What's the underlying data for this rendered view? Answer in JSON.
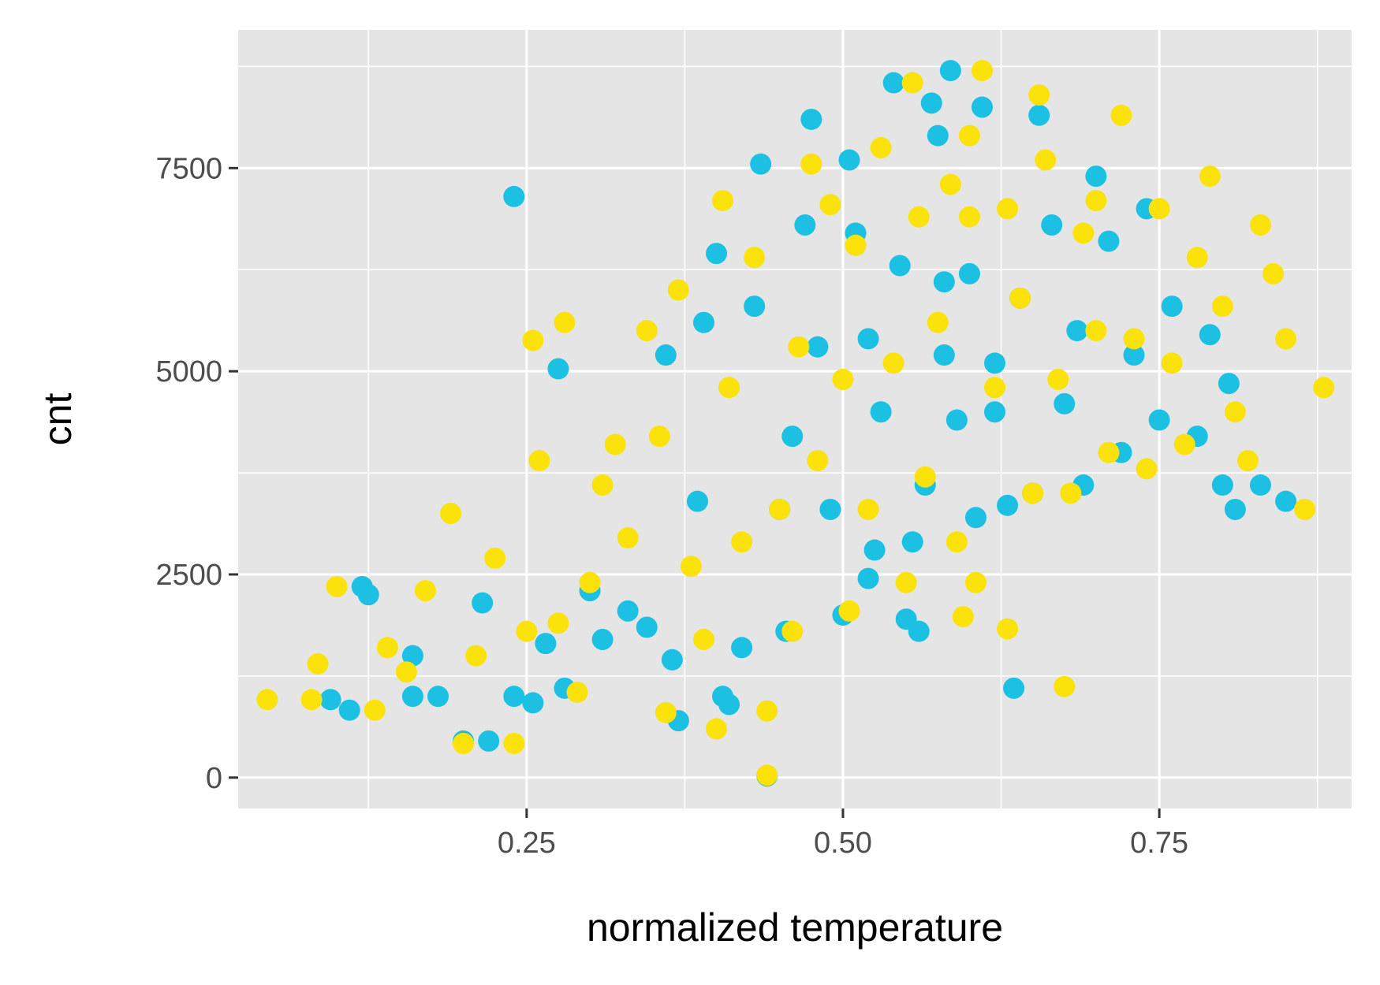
{
  "chart_data": {
    "type": "scatter",
    "xlabel": "normalized temperature",
    "ylabel": "cnt",
    "xlim": [
      0.022,
      0.902
    ],
    "ylim": [
      -380,
      9200
    ],
    "x_ticks": [
      0.25,
      0.5,
      0.75
    ],
    "x_tick_labels": [
      "0.25",
      "0.50",
      "0.75"
    ],
    "y_ticks": [
      0,
      2500,
      5000,
      7500
    ],
    "y_tick_labels": [
      "0",
      "2500",
      "5000",
      "7500"
    ],
    "grid": true,
    "legend": "none",
    "colors": {
      "panel": "#E5E5E5",
      "grid": "#FFFFFF",
      "series_1": "#1BC0E3",
      "series_2": "#FBE20A",
      "tick_text": "#4D4D4D"
    },
    "series": [
      {
        "color": "#1BC0E3",
        "points": [
          [
            0.095,
            960
          ],
          [
            0.11,
            830
          ],
          [
            0.12,
            2350
          ],
          [
            0.125,
            2250
          ],
          [
            0.16,
            1500
          ],
          [
            0.16,
            1000
          ],
          [
            0.18,
            1000
          ],
          [
            0.2,
            450
          ],
          [
            0.215,
            2150
          ],
          [
            0.22,
            450
          ],
          [
            0.24,
            7150
          ],
          [
            0.24,
            1000
          ],
          [
            0.255,
            920
          ],
          [
            0.265,
            1650
          ],
          [
            0.275,
            5030
          ],
          [
            0.28,
            1100
          ],
          [
            0.3,
            2300
          ],
          [
            0.31,
            1700
          ],
          [
            0.33,
            2050
          ],
          [
            0.345,
            1850
          ],
          [
            0.36,
            5200
          ],
          [
            0.365,
            1450
          ],
          [
            0.37,
            700
          ],
          [
            0.385,
            3400
          ],
          [
            0.39,
            5600
          ],
          [
            0.4,
            6450
          ],
          [
            0.405,
            1000
          ],
          [
            0.41,
            900
          ],
          [
            0.42,
            1600
          ],
          [
            0.43,
            5800
          ],
          [
            0.435,
            7550
          ],
          [
            0.44,
            20
          ],
          [
            0.45,
            3300
          ],
          [
            0.455,
            1800
          ],
          [
            0.46,
            4200
          ],
          [
            0.47,
            6800
          ],
          [
            0.475,
            8100
          ],
          [
            0.48,
            5300
          ],
          [
            0.49,
            3300
          ],
          [
            0.5,
            2000
          ],
          [
            0.505,
            7600
          ],
          [
            0.51,
            6700
          ],
          [
            0.52,
            2450
          ],
          [
            0.525,
            2800
          ],
          [
            0.53,
            4500
          ],
          [
            0.54,
            8550
          ],
          [
            0.545,
            6300
          ],
          [
            0.55,
            1950
          ],
          [
            0.555,
            2900
          ],
          [
            0.56,
            1800
          ],
          [
            0.565,
            3600
          ],
          [
            0.57,
            8300
          ],
          [
            0.575,
            7900
          ],
          [
            0.58,
            5200
          ],
          [
            0.585,
            8700
          ],
          [
            0.59,
            4400
          ],
          [
            0.6,
            6200
          ],
          [
            0.605,
            3200
          ],
          [
            0.61,
            8250
          ],
          [
            0.62,
            5100
          ],
          [
            0.63,
            3350
          ],
          [
            0.635,
            1100
          ],
          [
            0.64,
            5900
          ],
          [
            0.65,
            3500
          ],
          [
            0.655,
            8150
          ],
          [
            0.665,
            6800
          ],
          [
            0.675,
            4600
          ],
          [
            0.685,
            5500
          ],
          [
            0.69,
            3600
          ],
          [
            0.7,
            7400
          ],
          [
            0.71,
            6600
          ],
          [
            0.72,
            4000
          ],
          [
            0.73,
            5200
          ],
          [
            0.74,
            7000
          ],
          [
            0.75,
            4400
          ],
          [
            0.76,
            5800
          ],
          [
            0.78,
            4200
          ],
          [
            0.79,
            5450
          ],
          [
            0.8,
            3600
          ],
          [
            0.805,
            4850
          ],
          [
            0.81,
            3300
          ],
          [
            0.83,
            3600
          ],
          [
            0.85,
            3400
          ],
          [
            0.58,
            6100
          ],
          [
            0.62,
            4500
          ],
          [
            0.52,
            5400
          ]
        ]
      },
      {
        "color": "#FBE20A",
        "points": [
          [
            0.045,
            960
          ],
          [
            0.08,
            960
          ],
          [
            0.085,
            1400
          ],
          [
            0.1,
            2350
          ],
          [
            0.13,
            830
          ],
          [
            0.14,
            1600
          ],
          [
            0.155,
            1300
          ],
          [
            0.17,
            2300
          ],
          [
            0.19,
            3250
          ],
          [
            0.2,
            420
          ],
          [
            0.21,
            1500
          ],
          [
            0.225,
            2700
          ],
          [
            0.24,
            420
          ],
          [
            0.25,
            1800
          ],
          [
            0.255,
            5380
          ],
          [
            0.26,
            3900
          ],
          [
            0.275,
            1900
          ],
          [
            0.28,
            5600
          ],
          [
            0.29,
            1050
          ],
          [
            0.3,
            2400
          ],
          [
            0.31,
            3600
          ],
          [
            0.32,
            4100
          ],
          [
            0.33,
            2950
          ],
          [
            0.345,
            5500
          ],
          [
            0.355,
            4200
          ],
          [
            0.36,
            800
          ],
          [
            0.37,
            6000
          ],
          [
            0.38,
            2600
          ],
          [
            0.39,
            1700
          ],
          [
            0.4,
            600
          ],
          [
            0.405,
            7100
          ],
          [
            0.41,
            4800
          ],
          [
            0.42,
            2900
          ],
          [
            0.43,
            6400
          ],
          [
            0.44,
            30
          ],
          [
            0.44,
            820
          ],
          [
            0.45,
            3300
          ],
          [
            0.46,
            1800
          ],
          [
            0.465,
            5300
          ],
          [
            0.475,
            7550
          ],
          [
            0.48,
            3900
          ],
          [
            0.49,
            7050
          ],
          [
            0.5,
            4900
          ],
          [
            0.505,
            2050
          ],
          [
            0.51,
            6550
          ],
          [
            0.52,
            3300
          ],
          [
            0.53,
            7750
          ],
          [
            0.54,
            5100
          ],
          [
            0.55,
            2400
          ],
          [
            0.555,
            8550
          ],
          [
            0.565,
            3700
          ],
          [
            0.575,
            5600
          ],
          [
            0.585,
            7300
          ],
          [
            0.59,
            2900
          ],
          [
            0.595,
            1980
          ],
          [
            0.6,
            6900
          ],
          [
            0.605,
            2400
          ],
          [
            0.61,
            8700
          ],
          [
            0.62,
            4800
          ],
          [
            0.63,
            1830
          ],
          [
            0.64,
            5900
          ],
          [
            0.65,
            3500
          ],
          [
            0.655,
            8400
          ],
          [
            0.66,
            7600
          ],
          [
            0.67,
            4900
          ],
          [
            0.675,
            1120
          ],
          [
            0.68,
            3500
          ],
          [
            0.69,
            6700
          ],
          [
            0.7,
            5500
          ],
          [
            0.71,
            4000
          ],
          [
            0.72,
            8150
          ],
          [
            0.73,
            5400
          ],
          [
            0.74,
            3800
          ],
          [
            0.75,
            7000
          ],
          [
            0.76,
            5100
          ],
          [
            0.77,
            4100
          ],
          [
            0.78,
            6400
          ],
          [
            0.79,
            7400
          ],
          [
            0.8,
            5800
          ],
          [
            0.81,
            4500
          ],
          [
            0.82,
            3900
          ],
          [
            0.83,
            6800
          ],
          [
            0.84,
            6200
          ],
          [
            0.85,
            5400
          ],
          [
            0.865,
            3300
          ],
          [
            0.88,
            4800
          ],
          [
            0.6,
            7900
          ],
          [
            0.56,
            6900
          ],
          [
            0.63,
            7000
          ],
          [
            0.7,
            7100
          ]
        ]
      }
    ]
  }
}
